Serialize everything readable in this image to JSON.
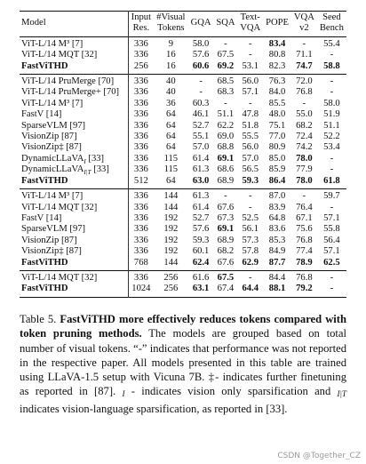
{
  "table": {
    "header": [
      [
        "Model"
      ],
      [
        "Input",
        "Res."
      ],
      [
        "#Visual",
        "Tokens"
      ],
      [
        "GQA"
      ],
      [
        "SQA"
      ],
      [
        "Text-",
        "VQA"
      ],
      [
        "POPE"
      ],
      [
        "VQA",
        "v2"
      ],
      [
        "Seed",
        "Bench"
      ]
    ],
    "groups": [
      [
        [
          "ViT-L/14 M³ [7]",
          "336",
          "9",
          "58.0",
          "-",
          "-",
          {
            "text": "83.4",
            "bold": true
          },
          "-",
          "55.4"
        ],
        [
          "ViT-L/14 MQT [32]",
          "336",
          "16",
          "57.6",
          "67.5",
          "-",
          "80.8",
          "71.1",
          "-"
        ],
        [
          {
            "text": "FastViTHD",
            "bold": true
          },
          "256",
          "16",
          {
            "text": "60.6",
            "bold": true
          },
          {
            "text": "69.2",
            "bold": true
          },
          "53.1",
          "82.3",
          {
            "text": "74.7",
            "bold": true
          },
          {
            "text": "58.8",
            "bold": true
          }
        ]
      ],
      [
        [
          "ViT-L/14 PruMerge [70]",
          "336",
          "40",
          "-",
          "68.5",
          "56.0",
          "76.3",
          "72.0",
          "-"
        ],
        [
          "ViT-L/14 PruMerge+ [70]",
          "336",
          "40",
          "-",
          "68.3",
          "57.1",
          "84.0",
          "76.8",
          "-"
        ],
        [
          "ViT-L/14 M³ [7]",
          "336",
          "36",
          "60.3",
          "-",
          "-",
          "85.5",
          "-",
          "58.0"
        ],
        [
          "FastV [14]",
          "336",
          "64",
          "46.1",
          "51.1",
          "47.8",
          "48.0",
          "55.0",
          "51.9"
        ],
        [
          "SparseVLM [97]",
          "336",
          "64",
          "52.7",
          "62.2",
          "51.8",
          "75.1",
          "68.2",
          "51.1"
        ],
        [
          "VisionZip [87]",
          "336",
          "64",
          "55.1",
          "69.0",
          "55.5",
          "77.0",
          "72.4",
          "52.2"
        ],
        [
          "VisionZip‡ [87]",
          "336",
          "64",
          "57.0",
          "68.8",
          "56.0",
          "80.9",
          "74.2",
          "53.4"
        ],
        [
          {
            "text": "DynamicLLaVA",
            "sub": "I",
            "ref": "[33]"
          },
          "336",
          "115",
          "61.4",
          {
            "text": "69.1",
            "bold": true
          },
          "57.0",
          "85.0",
          {
            "text": "78.0",
            "bold": true
          },
          "-"
        ],
        [
          {
            "text": "DynamicLLaVA",
            "sub": "I|T",
            "ref": "[33]"
          },
          "336",
          "115",
          "61.3",
          "68.6",
          "56.5",
          "85.9",
          "77.9",
          "-"
        ],
        [
          {
            "text": "FastViTHD",
            "bold": true
          },
          "512",
          "64",
          {
            "text": "63.0",
            "bold": true
          },
          "68.9",
          {
            "text": "59.3",
            "bold": true
          },
          {
            "text": "86.4",
            "bold": true
          },
          {
            "text": "78.0",
            "bold": true
          },
          {
            "text": "61.8",
            "bold": true
          }
        ]
      ],
      [
        [
          "ViT-L/14 M³ [7]",
          "336",
          "144",
          "61.3",
          "-",
          "-",
          "87.0",
          "-",
          "59.7"
        ],
        [
          "ViT-L/14 MQT [32]",
          "336",
          "144",
          "61.4",
          "67.6",
          "-",
          "83.9",
          "76.4",
          "-"
        ],
        [
          "FastV [14]",
          "336",
          "192",
          "52.7",
          "67.3",
          "52.5",
          "64.8",
          "67.1",
          "57.1"
        ],
        [
          "SparseVLM [97]",
          "336",
          "192",
          "57.6",
          {
            "text": "69.1",
            "bold": true
          },
          "56.1",
          "83.6",
          "75.6",
          "55.8"
        ],
        [
          "VisionZip [87]",
          "336",
          "192",
          "59.3",
          "68.9",
          "57.3",
          "85.3",
          "76.8",
          "56.4"
        ],
        [
          "VisionZip‡ [87]",
          "336",
          "192",
          "60.1",
          "68.2",
          "57.8",
          "84.9",
          "77.4",
          "57.1"
        ],
        [
          {
            "text": "FastViTHD",
            "bold": true
          },
          "768",
          "144",
          {
            "text": "62.4",
            "bold": true
          },
          "67.6",
          {
            "text": "62.9",
            "bold": true
          },
          {
            "text": "87.7",
            "bold": true
          },
          {
            "text": "78.9",
            "bold": true
          },
          {
            "text": "62.5",
            "bold": true
          }
        ]
      ],
      [
        [
          "ViT-L/14 MQT [32]",
          "336",
          "256",
          "61.6",
          {
            "text": "67.5",
            "bold": true
          },
          "-",
          "84.4",
          "76.8",
          "-"
        ],
        [
          {
            "text": "FastViTHD",
            "bold": true
          },
          "1024",
          "256",
          {
            "text": "63.1",
            "bold": true
          },
          "67.4",
          {
            "text": "64.4",
            "bold": true
          },
          {
            "text": "88.1",
            "bold": true
          },
          {
            "text": "79.2",
            "bold": true
          },
          "-"
        ]
      ]
    ]
  },
  "caption": [
    {
      "text": "Table 5."
    },
    {
      "text": "FastViTHD more effectively reduces tokens compared with token pruning methods.",
      "bold": true
    },
    {
      "text": "The models are grouped based on total number of visual tokens. “-” indicates that performance was not reported in the respective paper. All models presented in this table are trained using LLaVA-1.5 setup with Vicuna 7B. ‡- indicates further finetuning as reported in [87]."
    },
    {
      "text": "I",
      "italic": true
    },
    {
      "text": "- indicates vision only sparsification and"
    },
    {
      "text": "I|T",
      "italic": true
    },
    {
      "text": "indicates vision-language sparsification, as reported in [33]."
    }
  ],
  "watermark": "CSDN @Together_CZ"
}
